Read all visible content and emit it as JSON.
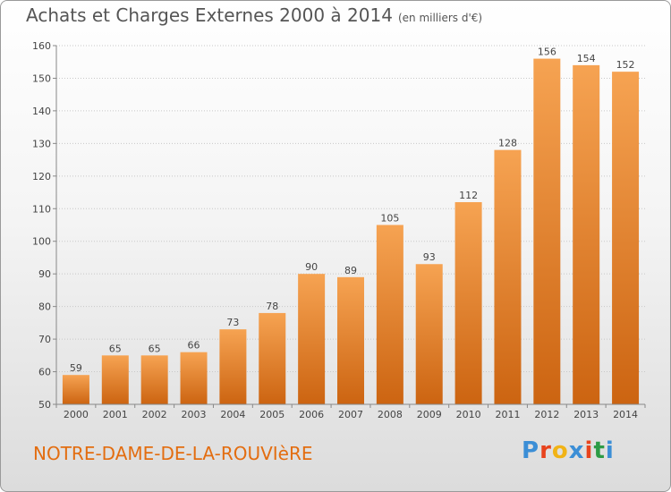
{
  "header": {
    "title": "Achats et Charges Externes 2000 à 2014",
    "subtitle": "(en milliers d'€)"
  },
  "footer": {
    "commune": "NOTRE-DAME-DE-LA-ROUVIèRE",
    "logo_letters": [
      "P",
      "r",
      "o",
      "x",
      "i",
      "t",
      "i"
    ]
  },
  "colors": {
    "bar_light": "#f6a352",
    "bar_dark": "#cc6411",
    "commune": "#e36d10",
    "logo": [
      "#3b8ed6",
      "#e8431d",
      "#f1b316",
      "#3b8ed6",
      "#e8431d",
      "#2d9b45",
      "#3b8ed6"
    ]
  },
  "chart_data": {
    "type": "bar",
    "title": "Achats et Charges Externes 2000 à 2014",
    "ylabel": "en milliers d'€",
    "xlabel": "",
    "categories": [
      "2000",
      "2001",
      "2002",
      "2003",
      "2004",
      "2005",
      "2006",
      "2007",
      "2008",
      "2009",
      "2010",
      "2011",
      "2012",
      "2013",
      "2014"
    ],
    "values": [
      59,
      65,
      65,
      66,
      73,
      78,
      90,
      89,
      105,
      93,
      112,
      128,
      156,
      154,
      152
    ],
    "ylim": [
      50,
      160
    ],
    "yticks": [
      50,
      60,
      70,
      80,
      90,
      100,
      110,
      120,
      130,
      140,
      150,
      160
    ],
    "grid": true
  }
}
